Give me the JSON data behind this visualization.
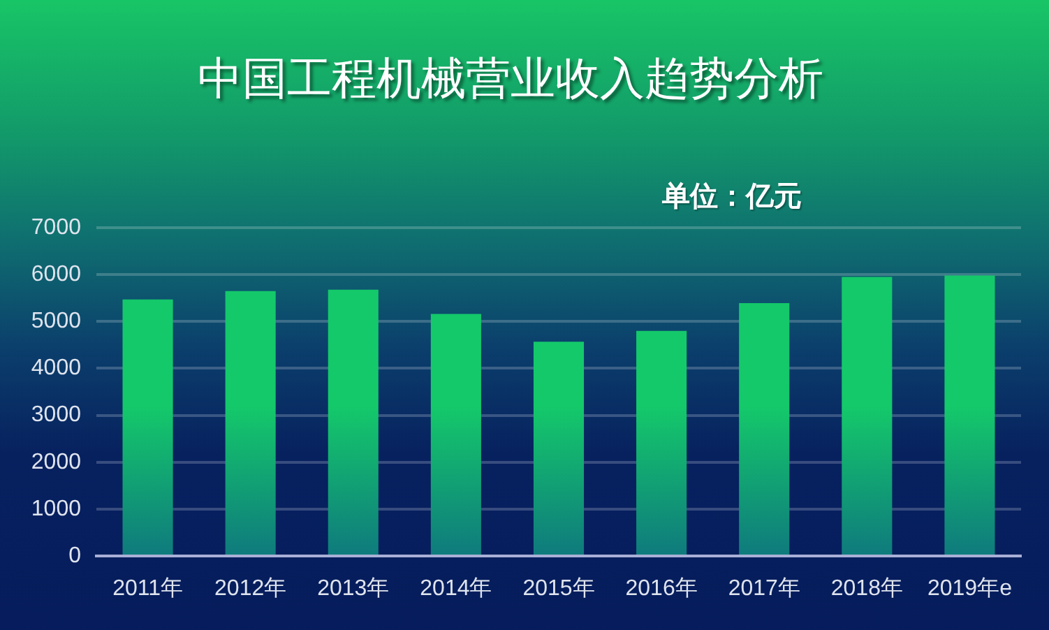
{
  "chart_data": {
    "type": "bar",
    "title": "中国工程机械营业收入趋势分析",
    "annotations": [
      "单位：亿元"
    ],
    "categories": [
      "2011年",
      "2012年",
      "2013年",
      "2014年",
      "2015年",
      "2016年",
      "2017年",
      "2018年",
      "2019年e"
    ],
    "values": [
      5470,
      5650,
      5680,
      5160,
      4570,
      4800,
      5390,
      5950,
      5980
    ],
    "color": "#14c96a",
    "ylim": [
      0,
      7000
    ],
    "yticks": [
      0,
      1000,
      2000,
      3000,
      4000,
      5000,
      6000,
      7000
    ],
    "grid": "y"
  }
}
